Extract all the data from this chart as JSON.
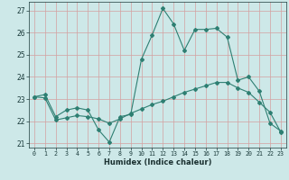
{
  "xlabel": "Humidex (Indice chaleur)",
  "bg_color": "#cde8e8",
  "grid_color": "#b8d0d0",
  "line_color": "#2e7f72",
  "xlim": [
    -0.5,
    23.5
  ],
  "ylim": [
    20.8,
    27.4
  ],
  "yticks": [
    21,
    22,
    23,
    24,
    25,
    26,
    27
  ],
  "xticks": [
    0,
    1,
    2,
    3,
    4,
    5,
    6,
    7,
    8,
    9,
    10,
    11,
    12,
    13,
    14,
    15,
    16,
    17,
    18,
    19,
    20,
    21,
    22,
    23
  ],
  "series1_x": [
    0,
    1,
    2,
    3,
    4,
    5,
    6,
    7,
    8,
    9,
    10,
    11,
    12,
    13,
    14,
    15,
    16,
    17,
    18,
    19,
    20,
    21,
    22,
    23
  ],
  "series1_y": [
    23.1,
    23.2,
    22.2,
    22.5,
    22.6,
    22.5,
    21.6,
    21.05,
    22.2,
    22.3,
    24.8,
    25.9,
    27.1,
    26.4,
    25.2,
    26.15,
    26.15,
    26.2,
    25.8,
    23.85,
    24.0,
    23.35,
    21.9,
    21.55
  ],
  "series2_x": [
    0,
    1,
    2,
    3,
    4,
    5,
    6,
    7,
    8,
    9,
    10,
    11,
    12,
    13,
    14,
    15,
    16,
    17,
    18,
    19,
    20,
    21,
    22,
    23
  ],
  "series2_y": [
    23.1,
    23.05,
    22.05,
    22.15,
    22.25,
    22.2,
    22.1,
    21.9,
    22.1,
    22.35,
    22.55,
    22.75,
    22.9,
    23.1,
    23.3,
    23.45,
    23.6,
    23.75,
    23.75,
    23.5,
    23.3,
    22.85,
    22.4,
    21.5
  ]
}
